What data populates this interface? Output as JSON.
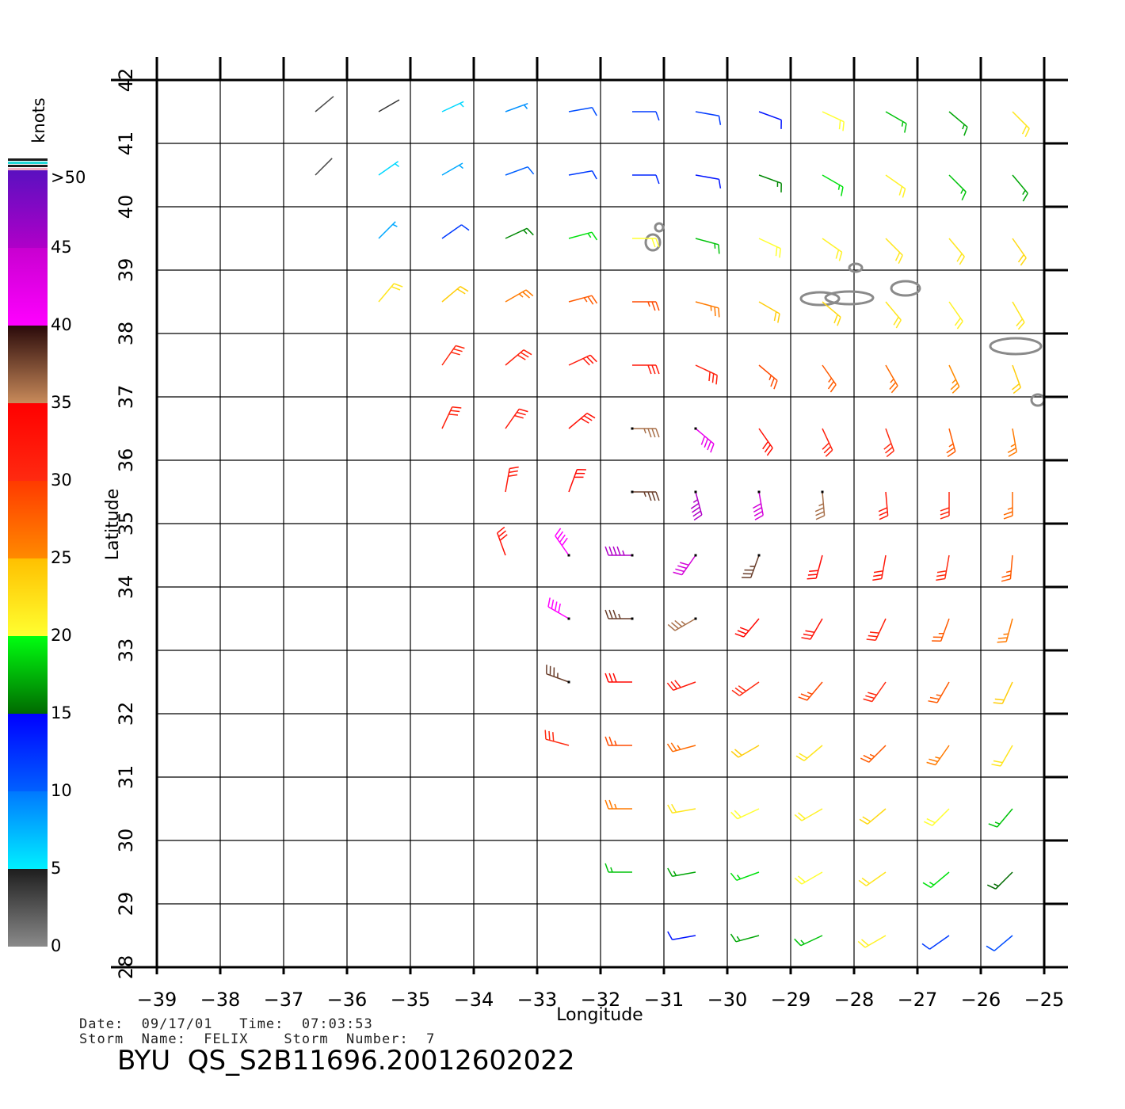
{
  "chart_data": {
    "type": "wind_barbs",
    "title": "BYU  QS_S2B11696.20012602022",
    "date_line": "Date:  09/17/01   Time:  07:03:53",
    "storm_line": "Storm  Name:  FELIX    Storm  Number:  7",
    "xlabel": "Longitude",
    "ylabel": "Latitude",
    "xlim": [
      -39,
      -25
    ],
    "ylim": [
      28,
      42
    ],
    "xticks": [
      {
        "value": -39,
        "label": "−39"
      },
      {
        "value": -38,
        "label": "−38"
      },
      {
        "value": -37,
        "label": "−37"
      },
      {
        "value": -36,
        "label": "−36"
      },
      {
        "value": -35,
        "label": "−35"
      },
      {
        "value": -34,
        "label": "−34"
      },
      {
        "value": -33,
        "label": "−33"
      },
      {
        "value": -32,
        "label": "−32"
      },
      {
        "value": -31,
        "label": "−31"
      },
      {
        "value": -30,
        "label": "−30"
      },
      {
        "value": -29,
        "label": "−29"
      },
      {
        "value": -28,
        "label": "−28"
      },
      {
        "value": -27,
        "label": "−27"
      },
      {
        "value": -26,
        "label": "−26"
      },
      {
        "value": -25,
        "label": "−25"
      }
    ],
    "yticks": [
      28,
      29,
      30,
      31,
      32,
      33,
      34,
      35,
      36,
      37,
      38,
      39,
      40,
      41,
      42
    ],
    "grid": true,
    "colorbar": {
      "label": "knots",
      "ticks": [
        0,
        5,
        10,
        15,
        20,
        25,
        30,
        35,
        40,
        45,
        {
          "value": 50,
          "label": ">50"
        }
      ],
      "bands": [
        {
          "min": 0,
          "max": 5,
          "colors": [
            "#8a8a8a",
            "#1e1e1e"
          ]
        },
        {
          "min": 5,
          "max": 10,
          "colors": [
            "#00f0ff",
            "#0078ff"
          ]
        },
        {
          "min": 10,
          "max": 15,
          "colors": [
            "#0060ff",
            "#0000ff"
          ]
        },
        {
          "min": 15,
          "max": 20,
          "colors": [
            "#006a00",
            "#00ff10"
          ]
        },
        {
          "min": 20,
          "max": 25,
          "colors": [
            "#ffff30",
            "#ffc000"
          ]
        },
        {
          "min": 25,
          "max": 30,
          "colors": [
            "#ff8a00",
            "#ff3a00"
          ]
        },
        {
          "min": 30,
          "max": 35,
          "colors": [
            "#ff2a10",
            "#ff0000"
          ]
        },
        {
          "min": 35,
          "max": 40,
          "colors": [
            "#c88a5a",
            "#2a0a0a"
          ]
        },
        {
          "min": 40,
          "max": 45,
          "colors": [
            "#ff00ff",
            "#c800d0"
          ]
        },
        {
          "min": 45,
          "max": 50,
          "colors": [
            "#b000c8",
            "#5a10c0"
          ]
        }
      ]
    },
    "wind": [
      {
        "lat": 41.5,
        "lon": [
          -36.5,
          -35.5,
          -34.5,
          -33.5,
          -32.5,
          -31.5,
          -30.5,
          -29.5,
          -28.5,
          -27.5,
          -26.5,
          -25.5
        ],
        "speed": [
          3,
          4,
          6,
          9,
          11,
          12,
          12,
          14,
          20,
          18,
          17,
          22
        ],
        "direction": [
          50,
          60,
          65,
          70,
          80,
          90,
          100,
          110,
          115,
          120,
          130,
          135
        ]
      },
      {
        "lat": 40.5,
        "lon": [
          -36.5,
          -35.5,
          -34.5,
          -33.5,
          -32.5,
          -31.5,
          -30.5,
          -29.5,
          -28.5,
          -27.5,
          -26.5,
          -25.5
        ],
        "speed": [
          3,
          6,
          8,
          10,
          12,
          13,
          14,
          16,
          19,
          21,
          18,
          17
        ],
        "direction": [
          45,
          55,
          60,
          70,
          80,
          90,
          100,
          110,
          120,
          125,
          135,
          140
        ]
      },
      {
        "lat": 39.5,
        "lon": [
          -35.5,
          -34.5,
          -33.5,
          -32.5,
          -31.5,
          -30.5,
          -29.5,
          -28.5,
          -27.5,
          -26.5,
          -25.5
        ],
        "speed": [
          8,
          12,
          16,
          19,
          20,
          18,
          20,
          21,
          22,
          22,
          23
        ],
        "direction": [
          45,
          55,
          65,
          75,
          90,
          105,
          115,
          125,
          135,
          140,
          145
        ]
      },
      {
        "lat": 38.5,
        "lon": [
          -35.5,
          -34.5,
          -33.5,
          -32.5,
          -31.5,
          -30.5,
          -29.5,
          -28.5,
          -27.5,
          -26.5,
          -25.5
        ],
        "speed": [
          22,
          24,
          26,
          28,
          29,
          26,
          24,
          23,
          22,
          21,
          22
        ],
        "direction": [
          40,
          50,
          60,
          75,
          90,
          105,
          120,
          130,
          140,
          145,
          150
        ]
      },
      {
        "lat": 37.5,
        "lon": [
          -34.5,
          -33.5,
          -32.5,
          -31.5,
          -30.5,
          -29.5,
          -28.5,
          -27.5,
          -26.5,
          -25.5
        ],
        "speed": [
          30,
          31,
          32,
          32,
          31,
          29,
          28,
          27,
          25,
          24
        ],
        "direction": [
          35,
          50,
          65,
          90,
          115,
          130,
          145,
          150,
          155,
          160
        ]
      },
      {
        "lat": 36.5,
        "lon": [
          -34.5,
          -33.5,
          -32.5,
          -31.5,
          -30.5,
          -29.5,
          -28.5,
          -27.5,
          -26.5,
          -25.5
        ],
        "speed": [
          31,
          32,
          33,
          36,
          42,
          33,
          31,
          30,
          28,
          26
        ],
        "direction": [
          25,
          35,
          50,
          90,
          130,
          145,
          155,
          160,
          165,
          170
        ]
      },
      {
        "lat": 35.5,
        "lon": [
          -33.5,
          -32.5,
          -31.5,
          -30.5,
          -29.5,
          -28.5,
          -27.5,
          -26.5,
          -25.5
        ],
        "speed": [
          32,
          34,
          38,
          45,
          44,
          36,
          32,
          30,
          27
        ],
        "direction": [
          10,
          20,
          90,
          165,
          170,
          175,
          175,
          180,
          180
        ]
      },
      {
        "lat": 34.5,
        "lon": [
          -33.5,
          -32.5,
          -31.5,
          -30.5,
          -29.5,
          -28.5,
          -27.5,
          -26.5,
          -25.5
        ],
        "speed": [
          33,
          40,
          45,
          44,
          38,
          34,
          32,
          30,
          28
        ],
        "direction": [
          340,
          325,
          270,
          215,
          200,
          195,
          190,
          190,
          185
        ]
      },
      {
        "lat": 33.5,
        "lon": [
          -32.5,
          -31.5,
          -30.5,
          -29.5,
          -28.5,
          -27.5,
          -26.5,
          -25.5
        ],
        "speed": [
          40,
          38,
          36,
          34,
          33,
          31,
          28,
          26
        ],
        "direction": [
          300,
          270,
          240,
          220,
          210,
          205,
          200,
          195
        ]
      },
      {
        "lat": 32.5,
        "lon": [
          -32.5,
          -31.5,
          -30.5,
          -29.5,
          -28.5,
          -27.5,
          -26.5,
          -25.5
        ],
        "speed": [
          38,
          34,
          32,
          30,
          29,
          30,
          28,
          24
        ],
        "direction": [
          290,
          270,
          250,
          235,
          220,
          215,
          210,
          205
        ]
      },
      {
        "lat": 31.5,
        "lon": [
          -32.5,
          -31.5,
          -30.5,
          -29.5,
          -28.5,
          -27.5,
          -26.5,
          -25.5
        ],
        "speed": [
          30,
          29,
          27,
          24,
          22,
          28,
          26,
          22
        ],
        "direction": [
          285,
          270,
          255,
          240,
          230,
          225,
          215,
          210
        ]
      },
      {
        "lat": 30.5,
        "lon": [
          -31.5,
          -30.5,
          -29.5,
          -28.5,
          -27.5,
          -26.5,
          -25.5
        ],
        "speed": [
          26,
          22,
          20,
          21,
          23,
          20,
          18
        ],
        "direction": [
          270,
          260,
          245,
          240,
          230,
          225,
          220
        ]
      },
      {
        "lat": 29.5,
        "lon": [
          -31.5,
          -30.5,
          -29.5,
          -28.5,
          -27.5,
          -26.5,
          -25.5
        ],
        "speed": [
          18,
          17,
          19,
          20,
          22,
          19,
          15
        ],
        "direction": [
          270,
          260,
          250,
          240,
          235,
          230,
          225
        ]
      },
      {
        "lat": 28.5,
        "lon": [
          -30.5,
          -29.5,
          -28.5,
          -27.5,
          -26.5,
          -25.5
        ],
        "speed": [
          14,
          17,
          18,
          21,
          12,
          11
        ],
        "direction": [
          260,
          255,
          245,
          240,
          235,
          230
        ]
      }
    ]
  }
}
